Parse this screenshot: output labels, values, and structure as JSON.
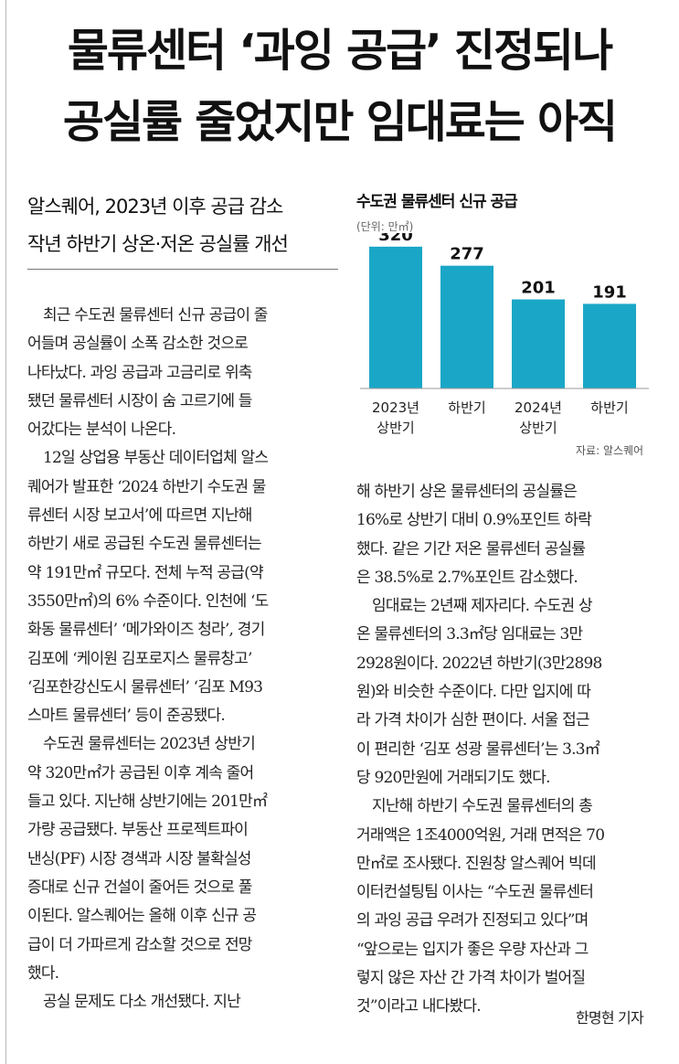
{
  "headline": {
    "line1": "물류센터 ‘과잉 공급’ 진정되나",
    "line2": "공실률 줄었지만 임대료는 아직"
  },
  "subheadline": {
    "line1": "알스퀘어, 2023년 이후 공급 감소",
    "line2": "작년 하반기 상온·저온 공실률 개선"
  },
  "body_left": [
    {
      "t": "최근 수도권 물류센터 신규 공급이 줄",
      "i": true
    },
    {
      "t": "어들며 공실률이 소폭 감소한 것으로",
      "i": false
    },
    {
      "t": "나타났다. 과잉 공급과 고금리로 위축",
      "i": false
    },
    {
      "t": "됐던 물류센터 시장이 숨 고르기에 들",
      "i": false
    },
    {
      "t": "어갔다는 분석이 나온다.",
      "i": false
    },
    {
      "t": "12일 상업용 부동산 데이터업체 알스",
      "i": true
    },
    {
      "t": "퀘어가 발표한 ‘2024 하반기 수도권 물",
      "i": false
    },
    {
      "t": "류센터 시장 보고서’에 따르면 지난해",
      "i": false
    },
    {
      "t": "하반기 새로 공급된 수도권 물류센터는",
      "i": false
    },
    {
      "t": "약 191만㎡ 규모다. 전체 누적 공급(약",
      "i": false
    },
    {
      "t": "3550만㎡)의 6% 수준이다. 인천에 ‘도",
      "i": false
    },
    {
      "t": "화동 물류센터’ ‘메가와이즈 청라’, 경기",
      "i": false
    },
    {
      "t": "김포에 ‘케이원 김포로지스 물류창고’",
      "i": false
    },
    {
      "t": "‘김포한강신도시 물류센터’ ‘김포 M93",
      "i": false
    },
    {
      "t": "스마트 물류센터’ 등이 준공됐다.",
      "i": false
    },
    {
      "t": "수도권 물류센터는 2023년 상반기",
      "i": true
    },
    {
      "t": "약 320만㎡가 공급된 이후 계속 줄어",
      "i": false
    },
    {
      "t": "들고 있다. 지난해 상반기에는 201만㎡",
      "i": false
    },
    {
      "t": "가량 공급됐다. 부동산 프로젝트파이",
      "i": false
    },
    {
      "t": "낸싱(PF) 시장 경색과 시장 불확실성",
      "i": false
    },
    {
      "t": "증대로 신규 건설이 줄어든 것으로 풀",
      "i": false
    },
    {
      "t": "이된다. 알스퀘어는 올해 이후 신규 공",
      "i": false
    },
    {
      "t": "급이 더 가파르게 감소할 것으로 전망",
      "i": false
    },
    {
      "t": "했다.",
      "i": false
    },
    {
      "t": "공실 문제도 다소 개선됐다. 지난",
      "i": true
    }
  ],
  "body_right": [
    {
      "t": "해 하반기 상온 물류센터의 공실률은",
      "i": false
    },
    {
      "t": "16%로 상반기 대비 0.9%포인트 하락",
      "i": false
    },
    {
      "t": "했다. 같은 기간 저온 물류센터 공실률",
      "i": false
    },
    {
      "t": "은 38.5%로 2.7%포인트 감소했다.",
      "i": false
    },
    {
      "t": "임대료는 2년째 제자리다. 수도권 상",
      "i": true
    },
    {
      "t": "온 물류센터의 3.3㎡당 임대료는 3만",
      "i": false
    },
    {
      "t": "2928원이다. 2022년 하반기(3만2898",
      "i": false
    },
    {
      "t": "원)와 비슷한 수준이다. 다만 입지에 따",
      "i": false
    },
    {
      "t": "라 가격 차이가 심한 편이다. 서울 접근",
      "i": false
    },
    {
      "t": "이 편리한 ‘김포 성광 물류센터’는 3.3㎡",
      "i": false
    },
    {
      "t": "당 920만원에 거래되기도 했다.",
      "i": false
    },
    {
      "t": "지난해 하반기 수도권 물류센터의 총",
      "i": true
    },
    {
      "t": "거래액은 1조4000억원, 거래 면적은 70",
      "i": false
    },
    {
      "t": "만㎡로 조사됐다. 진원창 알스퀘어 빅데",
      "i": false
    },
    {
      "t": "이터컨설팅팀 이사는 “수도권 물류센터",
      "i": false
    },
    {
      "t": "의 과잉 공급 우려가 진정되고 있다”며",
      "i": false
    },
    {
      "t": "“앞으로는 입지가 좋은 우량 자산과 그",
      "i": false
    },
    {
      "t": "렇지 않은 자산 간 가격 차이가 벌어질",
      "i": false
    },
    {
      "t": "것”이라고 내다봤다.",
      "i": false
    }
  ],
  "byline": "한명현 기자",
  "chart_data": {
    "type": "bar",
    "title": "수도권 물류센터 신규 공급",
    "unit": "(단위: 만㎡)",
    "categories": [
      [
        "2023년",
        "상반기"
      ],
      [
        "하반기"
      ],
      [
        "2024년",
        "상반기"
      ],
      [
        "하반기"
      ]
    ],
    "values": [
      320,
      277,
      201,
      191
    ],
    "bar_color": "#1aa7c7",
    "ylim": [
      0,
      330
    ],
    "grid": false,
    "source": "자료: 알스퀘어"
  }
}
